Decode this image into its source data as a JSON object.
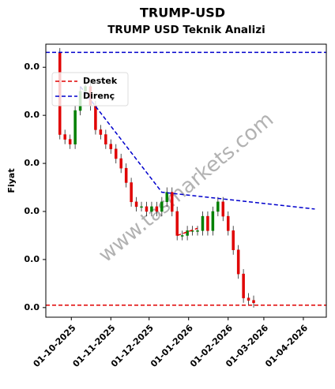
{
  "chart_data": {
    "type": "candlestick",
    "title": "TRUMP-USD",
    "subtitle": "TRUMP USD Teknik Analizi",
    "y_label": "Fiyat",
    "watermark": "www.tasmarkets.com",
    "x": [
      "2025-09-22",
      "2025-09-26",
      "2025-09-30",
      "2025-10-04",
      "2025-10-08",
      "2025-10-12",
      "2025-10-16",
      "2025-10-20",
      "2025-10-24",
      "2025-10-28",
      "2025-11-01",
      "2025-11-05",
      "2025-11-09",
      "2025-11-13",
      "2025-11-17",
      "2025-11-21",
      "2025-11-25",
      "2025-11-29",
      "2025-12-03",
      "2025-12-07",
      "2025-12-11",
      "2025-12-15",
      "2025-12-19",
      "2025-12-23",
      "2025-12-27",
      "2025-12-31",
      "2026-01-04",
      "2026-01-08",
      "2026-01-12",
      "2026-01-16",
      "2026-01-20",
      "2026-01-24",
      "2026-01-28",
      "2026-02-01",
      "2026-02-05",
      "2026-02-09",
      "2026-02-13",
      "2026-02-17",
      "2026-02-21"
    ],
    "open": [
      0.053,
      0.036,
      0.035,
      0.034,
      0.041,
      0.045,
      0.046,
      0.042,
      0.037,
      0.036,
      0.034,
      0.033,
      0.031,
      0.029,
      0.026,
      0.022,
      0.021,
      0.021,
      0.02,
      0.021,
      0.02,
      0.022,
      0.024,
      0.02,
      0.015,
      0.015,
      0.016,
      0.016,
      0.016,
      0.019,
      0.016,
      0.02,
      0.022,
      0.019,
      0.016,
      0.012,
      0.007,
      0.002,
      0.0015
    ],
    "high": [
      0.054,
      0.037,
      0.036,
      0.042,
      0.046,
      0.047,
      0.047,
      0.043,
      0.038,
      0.037,
      0.035,
      0.034,
      0.032,
      0.03,
      0.027,
      0.023,
      0.022,
      0.022,
      0.022,
      0.022,
      0.023,
      0.025,
      0.025,
      0.021,
      0.016,
      0.017,
      0.017,
      0.017,
      0.02,
      0.02,
      0.021,
      0.023,
      0.023,
      0.02,
      0.017,
      0.013,
      0.008,
      0.003,
      0.0025
    ],
    "low": [
      0.035,
      0.034,
      0.033,
      0.033,
      0.04,
      0.044,
      0.041,
      0.036,
      0.035,
      0.033,
      0.032,
      0.03,
      0.028,
      0.025,
      0.021,
      0.02,
      0.02,
      0.019,
      0.019,
      0.019,
      0.019,
      0.021,
      0.019,
      0.014,
      0.014,
      0.014,
      0.015,
      0.015,
      0.015,
      0.015,
      0.015,
      0.019,
      0.018,
      0.015,
      0.011,
      0.006,
      0.001,
      0.0005,
      0.0
    ],
    "close": [
      0.036,
      0.035,
      0.034,
      0.041,
      0.045,
      0.046,
      0.042,
      0.037,
      0.036,
      0.034,
      0.033,
      0.031,
      0.029,
      0.026,
      0.022,
      0.021,
      0.021,
      0.02,
      0.021,
      0.02,
      0.022,
      0.024,
      0.02,
      0.015,
      0.015,
      0.016,
      0.016,
      0.016,
      0.019,
      0.016,
      0.02,
      0.022,
      0.019,
      0.016,
      0.012,
      0.007,
      0.002,
      0.0015,
      0.001
    ],
    "up_color": "#008000",
    "down_color": "#e00000",
    "support": {
      "name": "Destek",
      "color": "#e00000",
      "segments": [
        {
          "x": [
            "2025-09-11",
            "2026-04-19"
          ],
          "values": [
            0.0005,
            0.0005
          ]
        },
        {
          "x": [
            "2025-12-23",
            "2026-01-08"
          ],
          "values": [
            0.015,
            0.0165
          ]
        }
      ]
    },
    "resistance": {
      "name": "Direnç",
      "color": "#0000cc",
      "segments": [
        {
          "x": [
            "2025-09-11",
            "2026-04-19"
          ],
          "values": [
            0.0531,
            0.0531
          ]
        },
        {
          "x": [
            "2025-10-08",
            "2025-12-11",
            "2026-04-10"
          ],
          "values": [
            0.046,
            0.024,
            0.0205
          ]
        }
      ]
    },
    "xlim": [
      "2025-09-11",
      "2026-04-19"
    ],
    "xticks": [
      {
        "value": "2025-10-01",
        "label": "01-10-2025"
      },
      {
        "value": "2025-11-01",
        "label": "01-11-2025"
      },
      {
        "value": "2025-12-01",
        "label": "01-12-2025"
      },
      {
        "value": "2026-01-01",
        "label": "01-01-2026"
      },
      {
        "value": "2026-02-01",
        "label": "01-02-2026"
      },
      {
        "value": "2026-03-01",
        "label": "01-03-2026"
      },
      {
        "value": "2026-04-01",
        "label": "01-04-2026"
      }
    ],
    "ylim": [
      -0.002,
      0.0548
    ],
    "yticks": [
      {
        "value": 0.0,
        "label": "0.0"
      },
      {
        "value": 0.01,
        "label": "0.0"
      },
      {
        "value": 0.02,
        "label": "0.0"
      },
      {
        "value": 0.03,
        "label": "0.0"
      },
      {
        "value": 0.04,
        "label": "0.0"
      },
      {
        "value": 0.05,
        "label": "0.0"
      }
    ],
    "legend": "upper left"
  }
}
